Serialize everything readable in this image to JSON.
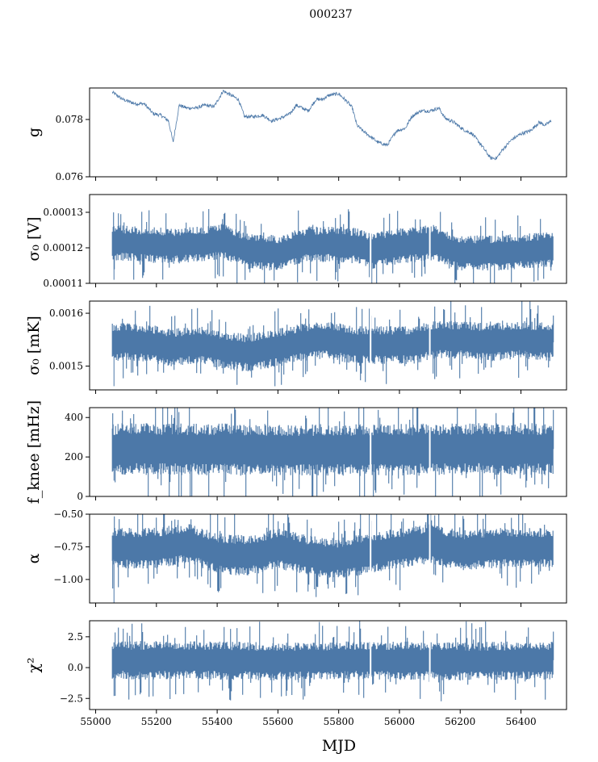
{
  "figure": {
    "title": "000237"
  },
  "colors": {
    "series": "#4c78a8",
    "axes": "#000000",
    "background": "#ffffff"
  },
  "chart_data": [
    {
      "type": "line",
      "ylabel": "g",
      "ylim": [
        0.076,
        0.0791
      ],
      "yticks": [
        0.076,
        0.078
      ],
      "ytick_labels": [
        "0.076",
        "0.078"
      ],
      "xlim": [
        54980,
        56550
      ],
      "xticks": [
        55000,
        55200,
        55400,
        55600,
        55800,
        56000,
        56200,
        56400
      ],
      "show_xticklabels": false,
      "x": [
        55055,
        55090,
        55130,
        55160,
        55190,
        55215,
        55240,
        55255,
        55275,
        55300,
        55330,
        55360,
        55390,
        55420,
        55445,
        55470,
        55490,
        55520,
        55550,
        55580,
        55610,
        55640,
        55660,
        55680,
        55700,
        55725,
        55745,
        55770,
        55800,
        55830,
        55845,
        55860,
        55880,
        55905,
        55930,
        55960,
        55990,
        56020,
        56040,
        56070,
        56100,
        56130,
        56150,
        56180,
        56210,
        56240,
        56270,
        56300,
        56320,
        56340,
        56370,
        56400,
        56430,
        56460,
        56480,
        56500
      ],
      "values": [
        0.07895,
        0.0787,
        0.07855,
        0.07855,
        0.0782,
        0.07815,
        0.07795,
        0.0772,
        0.0785,
        0.0784,
        0.0784,
        0.0785,
        0.07845,
        0.079,
        0.07885,
        0.0787,
        0.0781,
        0.0781,
        0.07815,
        0.07795,
        0.07805,
        0.0782,
        0.0785,
        0.0784,
        0.0783,
        0.0787,
        0.0787,
        0.07885,
        0.0789,
        0.0786,
        0.0784,
        0.0778,
        0.0776,
        0.0774,
        0.0772,
        0.0771,
        0.0776,
        0.0777,
        0.0781,
        0.0783,
        0.0783,
        0.0784,
        0.07805,
        0.0779,
        0.07765,
        0.0775,
        0.0771,
        0.07665,
        0.07665,
        0.07695,
        0.0773,
        0.0775,
        0.0776,
        0.0779,
        0.0778,
        0.07795
      ],
      "noise": 0.00012
    },
    {
      "type": "line",
      "ylabel": "σ₀ [V]",
      "ylim": [
        0.00011,
        0.000135
      ],
      "yticks": [
        0.00011,
        0.00012,
        0.00013
      ],
      "ytick_labels": [
        "0.00011",
        "0.00012",
        "0.00013"
      ],
      "xlim": [
        54980,
        56550
      ],
      "xticks": [
        55000,
        55200,
        55400,
        55600,
        55800,
        56000,
        56200,
        56400
      ],
      "show_xticklabels": false,
      "x": [
        55055,
        55150,
        55250,
        55350,
        55420,
        55500,
        55600,
        55700,
        55800,
        55860,
        55905,
        55960,
        56050,
        56110,
        56200,
        56300,
        56400,
        56505
      ],
      "values": [
        0.0001215,
        0.000121,
        0.0001205,
        0.000121,
        0.000122,
        0.000119,
        0.0001185,
        0.000121,
        0.000121,
        0.0001205,
        0.000119,
        0.00012,
        0.000121,
        0.0001215,
        0.0001185,
        0.0001185,
        0.000119,
        0.0001195
      ],
      "band": 4.2e-06,
      "spike_low": 0.000111
    },
    {
      "type": "line",
      "ylabel": "σ₀ [mK]",
      "ylim": [
        0.001455,
        0.001623
      ],
      "yticks": [
        0.0015,
        0.0016
      ],
      "ytick_labels": [
        "0.0015",
        "0.0016"
      ],
      "xlim": [
        54980,
        56550
      ],
      "xticks": [
        55000,
        55200,
        55400,
        55600,
        55800,
        56000,
        56200,
        56400
      ],
      "show_xticklabels": false,
      "x": [
        55055,
        55150,
        55250,
        55350,
        55420,
        55500,
        55600,
        55680,
        55750,
        55850,
        55905,
        55960,
        56050,
        56110,
        56200,
        56300,
        56400,
        56505
      ],
      "values": [
        0.001545,
        0.001545,
        0.001535,
        0.00154,
        0.00153,
        0.001525,
        0.001535,
        0.001545,
        0.00155,
        0.00154,
        0.00154,
        0.00154,
        0.00154,
        0.00155,
        0.00155,
        0.001545,
        0.00155,
        0.001545
      ],
      "band": 3e-05,
      "spike_low": 0.001462
    },
    {
      "type": "line",
      "ylabel": "f_knee [mHz]",
      "ylim": [
        0,
        450
      ],
      "yticks": [
        0,
        200,
        400
      ],
      "ytick_labels": [
        "0",
        "200",
        "400"
      ],
      "xlim": [
        54980,
        56550
      ],
      "xticks": [
        55000,
        55200,
        55400,
        55600,
        55800,
        56000,
        56200,
        56400
      ],
      "show_xticklabels": false,
      "x": [
        55055,
        55300,
        55600,
        55900,
        56200,
        56505
      ],
      "values": [
        240,
        240,
        235,
        235,
        240,
        240
      ],
      "band": 110,
      "spike_low": 80
    },
    {
      "type": "line",
      "ylabel": "α",
      "ylim": [
        -1.18,
        -0.5
      ],
      "yticks": [
        -1.0,
        -0.75,
        -0.5
      ],
      "ytick_labels": [
        "−1.00",
        "−0.75",
        "−0.50"
      ],
      "xlim": [
        54980,
        56550
      ],
      "xticks": [
        55000,
        55200,
        55400,
        55600,
        55800,
        56000,
        56200,
        56400
      ],
      "show_xticklabels": false,
      "x": [
        55055,
        55200,
        55300,
        55400,
        55500,
        55600,
        55700,
        55800,
        55905,
        56000,
        56100,
        56200,
        56300,
        56400,
        56505
      ],
      "values": [
        -0.76,
        -0.76,
        -0.72,
        -0.8,
        -0.82,
        -0.76,
        -0.82,
        -0.84,
        -0.8,
        -0.76,
        -0.73,
        -0.78,
        -0.76,
        -0.76,
        -0.76
      ],
      "band": 0.13,
      "spike_low": -1.18
    },
    {
      "type": "line",
      "ylabel": "χ²",
      "ylim": [
        -3.4,
        3.8
      ],
      "yticks": [
        -2.5,
        0.0,
        2.5
      ],
      "ytick_labels": [
        "−2.5",
        "0.0",
        "2.5"
      ],
      "xlim": [
        54980,
        56550
      ],
      "xticks": [
        55000,
        55200,
        55400,
        55600,
        55800,
        56000,
        56200,
        56400
      ],
      "xtick_labels": [
        "55000",
        "55200",
        "55400",
        "55600",
        "55800",
        "56000",
        "56200",
        "56400"
      ],
      "show_xticklabels": true,
      "xlabel": "MJD",
      "x": [
        55055,
        55300,
        55600,
        55900,
        56200,
        56505
      ],
      "values": [
        0.6,
        0.6,
        0.5,
        0.6,
        0.5,
        0.6
      ],
      "band": 1.3,
      "spike_low": -2.3
    }
  ]
}
